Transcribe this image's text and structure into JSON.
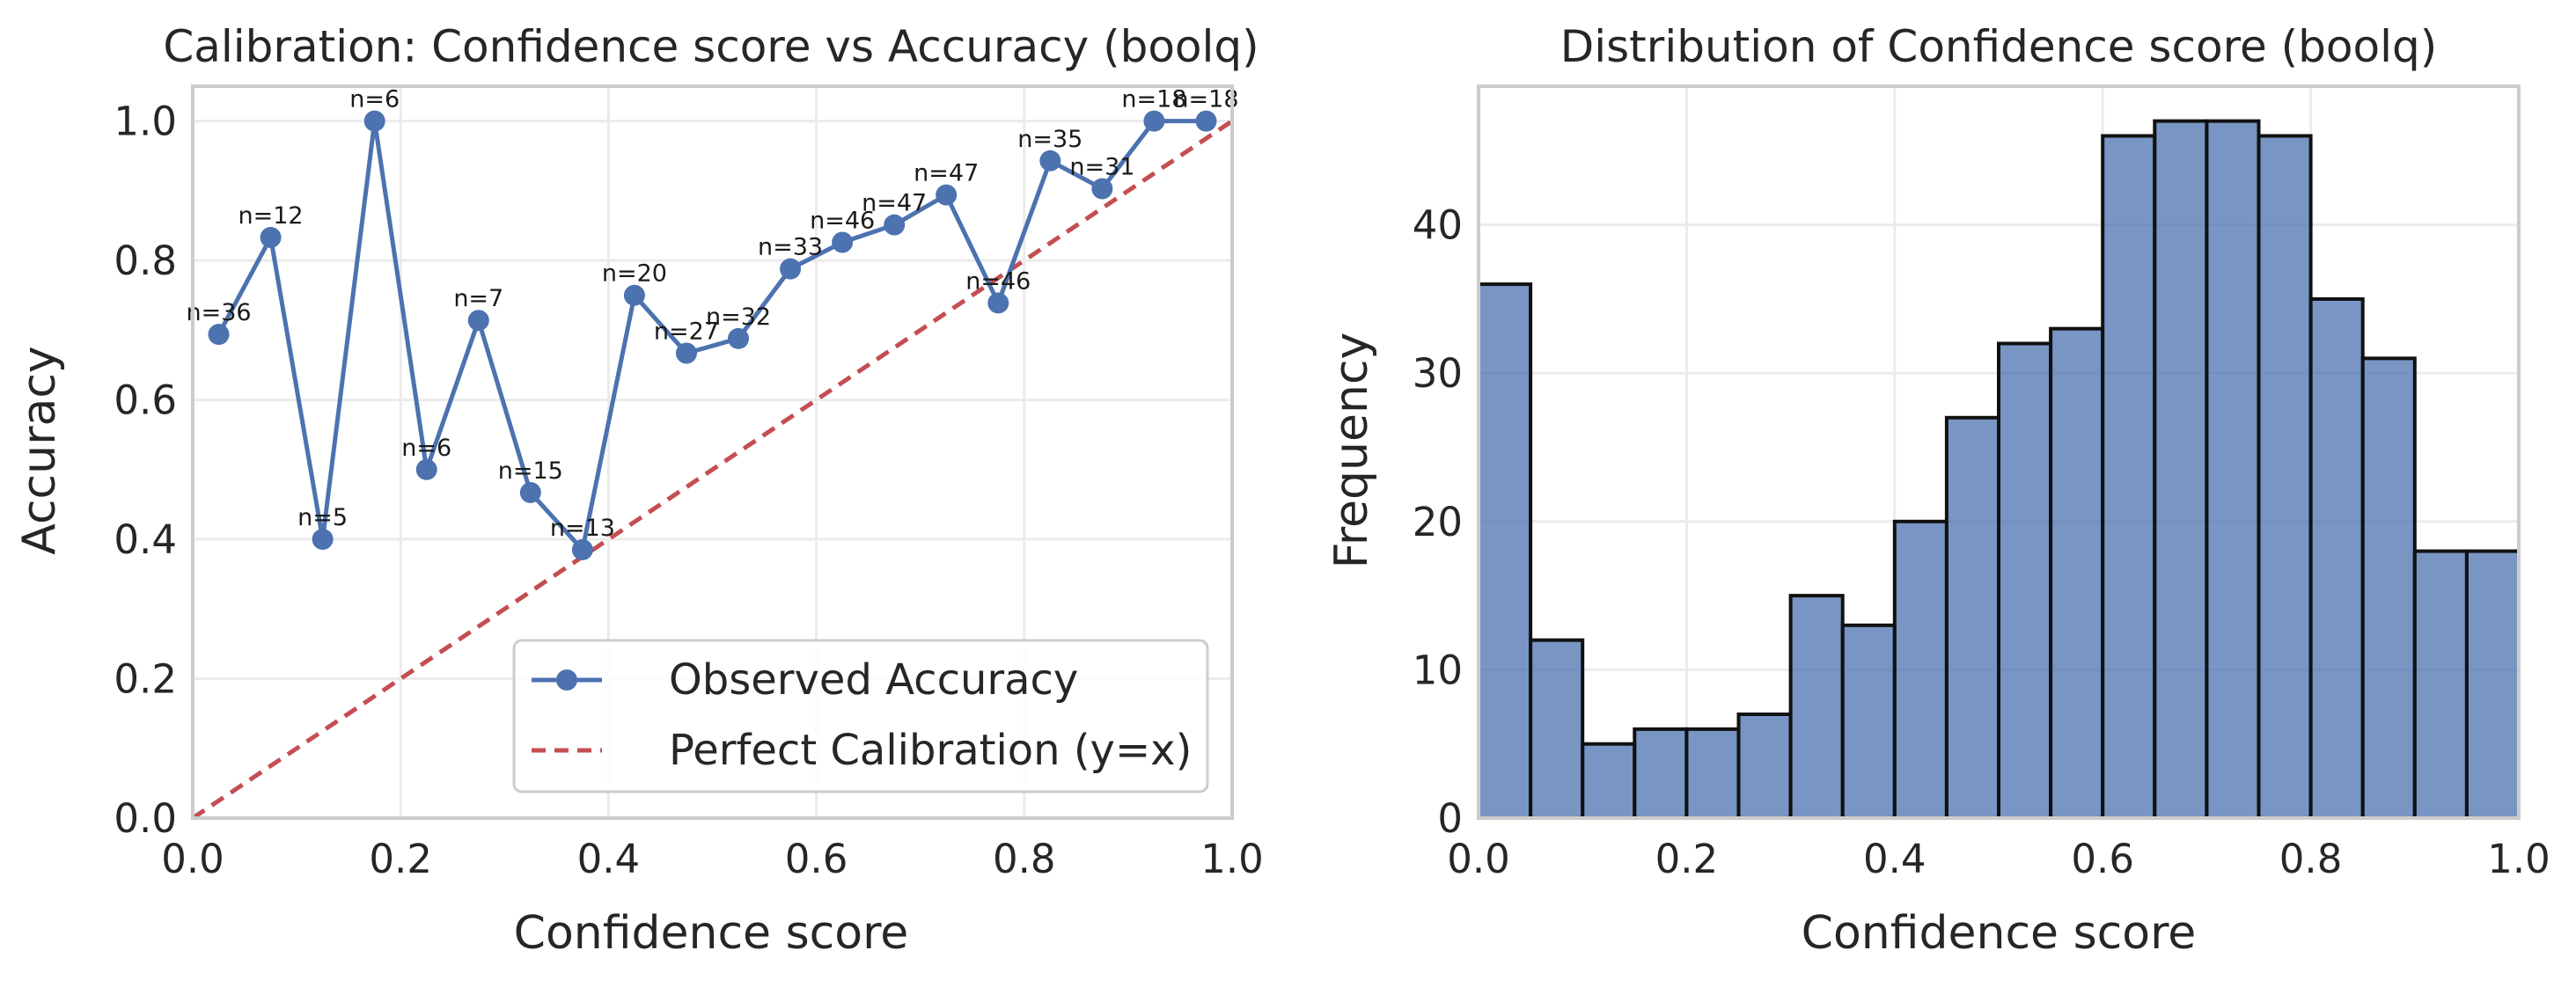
{
  "chart_data": [
    {
      "type": "line",
      "title": "Calibration: Confidence score vs Accuracy (boolq)",
      "xlabel": "Confidence score",
      "ylabel": "Accuracy",
      "xlim": [
        0,
        1
      ],
      "ylim": [
        0,
        1.05
      ],
      "xticks": [
        0.0,
        0.2,
        0.4,
        0.6,
        0.8,
        1.0
      ],
      "yticks": [
        0.0,
        0.2,
        0.4,
        0.6,
        0.8,
        1.0
      ],
      "grid": true,
      "legend_position": "bottom-right",
      "series": [
        {
          "name": "Observed Accuracy",
          "color": "#4c72b0",
          "x": [
            0.025,
            0.075,
            0.125,
            0.175,
            0.225,
            0.275,
            0.325,
            0.375,
            0.425,
            0.475,
            0.525,
            0.575,
            0.625,
            0.675,
            0.725,
            0.775,
            0.825,
            0.875,
            0.925,
            0.975
          ],
          "y": [
            0.694,
            0.833,
            0.4,
            1.0,
            0.5,
            0.714,
            0.467,
            0.385,
            0.75,
            0.667,
            0.688,
            0.788,
            0.826,
            0.851,
            0.894,
            0.739,
            0.943,
            0.903,
            1.0,
            1.0
          ],
          "annotations": [
            "n=36",
            "n=12",
            "n=5",
            "n=6",
            "n=6",
            "n=7",
            "n=15",
            "n=13",
            "n=20",
            "n=27",
            "n=32",
            "n=33",
            "n=46",
            "n=47",
            "n=47",
            "n=46",
            "n=35",
            "n=31",
            "n=18",
            "n=18"
          ]
        },
        {
          "name": "Perfect Calibration (y=x)",
          "color": "#c44e52",
          "style": "dashed",
          "x": [
            0,
            1
          ],
          "y": [
            0,
            1
          ]
        }
      ]
    },
    {
      "type": "bar",
      "subtype": "histogram",
      "title": "Distribution of Confidence score (boolq)",
      "xlabel": "Confidence score",
      "ylabel": "Frequency",
      "xlim": [
        0,
        1
      ],
      "ylim": [
        0,
        49.35
      ],
      "xticks": [
        0.0,
        0.2,
        0.4,
        0.6,
        0.8,
        1.0
      ],
      "yticks": [
        0,
        10,
        20,
        30,
        40
      ],
      "grid": true,
      "color": "#4c72b0",
      "bin_edges": [
        0.0,
        0.05,
        0.1,
        0.15,
        0.2,
        0.25,
        0.3,
        0.35,
        0.4,
        0.45,
        0.5,
        0.55,
        0.6,
        0.65,
        0.7,
        0.75,
        0.8,
        0.85,
        0.9,
        0.95,
        1.0
      ],
      "values": [
        36,
        12,
        5,
        6,
        6,
        7,
        15,
        13,
        20,
        27,
        32,
        33,
        46,
        47,
        47,
        46,
        35,
        31,
        18,
        18
      ]
    }
  ]
}
